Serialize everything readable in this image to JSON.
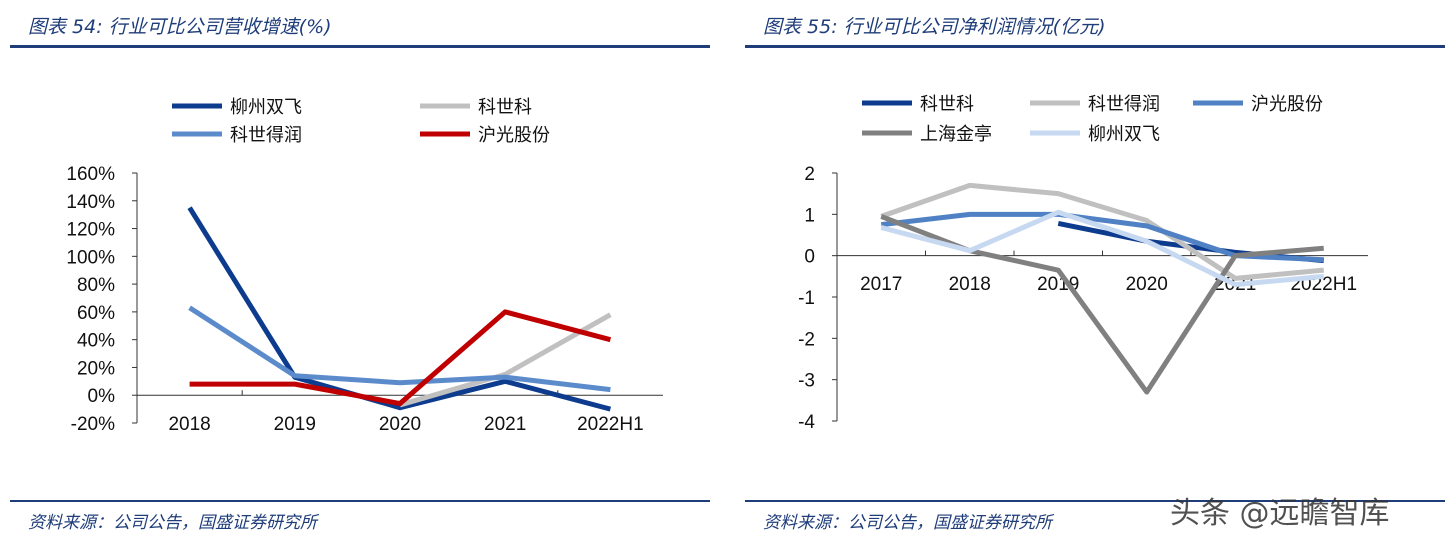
{
  "charts": [
    {
      "title": "图表 54:  行业可比公司营收增速(%)",
      "source": "资料来源：公司公告，国盛证券研究所"
    },
    {
      "title": "图表 55:  行业可比公司净利润情况(亿元)",
      "source": "资料来源：公司公告，国盛证券研究所"
    }
  ],
  "watermark": "头条 @远瞻智库",
  "chart_data": [
    {
      "type": "line",
      "categories": [
        "2018",
        "2019",
        "2020",
        "2021",
        "2022H1"
      ],
      "ylim": [
        -20,
        160
      ],
      "yticks": [
        "160%",
        "140%",
        "120%",
        "100%",
        "80%",
        "60%",
        "40%",
        "20%",
        "0%",
        "-20%"
      ],
      "legend": "top",
      "series": [
        {
          "name": "柳州双飞",
          "color": "#0d3b8e",
          "values": [
            135,
            13,
            -9,
            10,
            -10
          ]
        },
        {
          "name": "科世科",
          "color": "#c0c0c0",
          "values": [
            null,
            null,
            -7,
            15,
            58
          ]
        },
        {
          "name": "科世得润",
          "color": "#5b8bcb",
          "values": [
            63,
            14,
            9,
            13,
            4
          ]
        },
        {
          "name": "沪光股份",
          "color": "#c00000",
          "values": [
            8,
            8,
            -6,
            60,
            40
          ]
        }
      ]
    },
    {
      "type": "line",
      "categories": [
        "2017",
        "2018",
        "2019",
        "2020",
        "2021",
        "2022H1"
      ],
      "ylim": [
        -4,
        2
      ],
      "yticks": [
        "2",
        "1",
        "0",
        "-1",
        "-2",
        "-3",
        "-4"
      ],
      "legend": "top",
      "series": [
        {
          "name": "科世科",
          "color": "#0d3b8e",
          "values": [
            null,
            null,
            0.78,
            0.35,
            0.08,
            -0.12
          ]
        },
        {
          "name": "科世得润",
          "color": "#c0c0c0",
          "values": [
            0.95,
            1.7,
            1.5,
            0.85,
            -0.55,
            -0.35
          ]
        },
        {
          "name": "沪光股份",
          "color": "#4f81c4",
          "values": [
            0.75,
            1.0,
            1.0,
            0.72,
            0.0,
            -0.1
          ]
        },
        {
          "name": "上海金亭",
          "color": "#808080",
          "values": [
            0.95,
            0.12,
            -0.35,
            -3.3,
            0.0,
            0.18
          ]
        },
        {
          "name": "柳州双飞",
          "color": "#c6d9f0",
          "values": [
            0.68,
            0.12,
            1.05,
            0.35,
            -0.7,
            -0.5
          ]
        }
      ]
    }
  ]
}
